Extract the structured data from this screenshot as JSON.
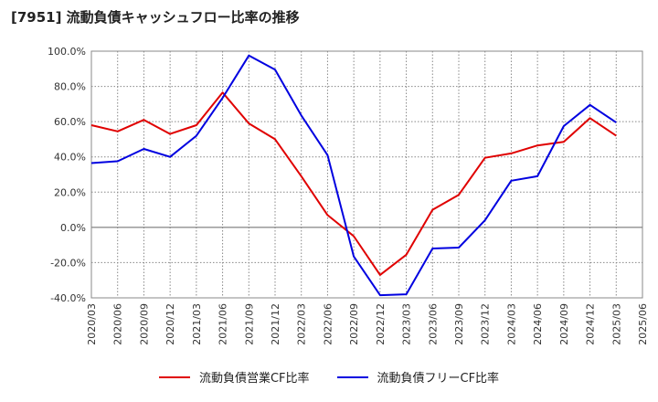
{
  "title": "[7951]  流動負債キャッシュフロー比率の推移",
  "colors": {
    "red": "#e00000",
    "blue": "#0000e0"
  },
  "chart_data": {
    "type": "line",
    "x": [
      "2020/03",
      "2020/06",
      "2020/09",
      "2020/12",
      "2021/03",
      "2021/06",
      "2021/09",
      "2021/12",
      "2022/03",
      "2022/06",
      "2022/09",
      "2022/12",
      "2023/03",
      "2023/06",
      "2023/09",
      "2023/12",
      "2024/03",
      "2024/06",
      "2024/09",
      "2024/12",
      "2025/03",
      "2025/06"
    ],
    "ylim": [
      -40,
      100
    ],
    "yticks": [
      -40,
      -20,
      0,
      20,
      40,
      60,
      80,
      100
    ],
    "ytick_labels": [
      "-40.0%",
      "-20.0%",
      "0.0%",
      "20.0%",
      "40.0%",
      "60.0%",
      "80.0%",
      "100.0%"
    ],
    "grid": true,
    "legend_position": "bottom",
    "series": [
      {
        "name": "流動負債営業CF比率",
        "color": "#e00000",
        "values": [
          58,
          54.5,
          61,
          53,
          58,
          76.5,
          59,
          50,
          29,
          7,
          -5,
          -27,
          -15.5,
          10,
          18.5,
          39.5,
          42,
          46.5,
          48.5,
          62,
          52,
          null
        ]
      },
      {
        "name": "流動負債フリーCF比率",
        "color": "#0000e0",
        "values": [
          36.5,
          37.5,
          44.5,
          40,
          52,
          73.5,
          97.5,
          89.5,
          63.5,
          41,
          -16.5,
          -38.5,
          -38,
          -12,
          -11.5,
          4,
          26.5,
          29,
          57.5,
          69.5,
          59.5,
          null
        ]
      }
    ]
  }
}
